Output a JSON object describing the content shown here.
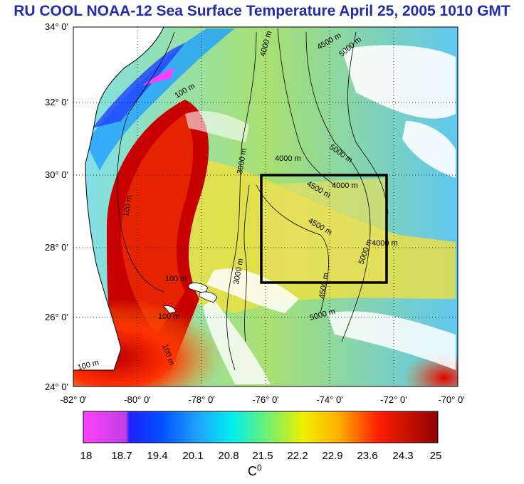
{
  "title": "RU COOL  NOAA-12 Sea Surface Temperature April 25, 2005 1010 GMT",
  "map": {
    "lat_ticks": [
      "34° 0'",
      "32° 0'",
      "30° 0'",
      "28° 0'",
      "26° 0'",
      "24° 0'"
    ],
    "lon_ticks": [
      "-82° 0'",
      "-80° 0'",
      "-78° 0'",
      "-76° 0'",
      "-74° 0'",
      "-72° 0'",
      "-70° 0'"
    ],
    "contour_labels": [
      "100 m",
      "100 m",
      "100 m",
      "100 m",
      "100 m",
      "100 m",
      "3000 m",
      "3000 m",
      "4000 m",
      "4000 m",
      "4000 m",
      "4000 m",
      "4500 m",
      "4500 m",
      "4500 m",
      "4500 m",
      "5000 m",
      "5000 m",
      "5000 m",
      "5000 m"
    ],
    "study_box": {
      "lon": [
        -76,
        -72
      ],
      "lat": [
        27,
        30
      ]
    }
  },
  "colorbar": {
    "ticks": [
      "18",
      "18.7",
      "19.4",
      "20.1",
      "20.8",
      "21.5",
      "22.2",
      "22.9",
      "23.6",
      "24.3",
      "25"
    ],
    "unit": "C",
    "unit_sup": "0"
  },
  "colors": {
    "title": "#1f2ea8",
    "land": "#ffffff",
    "cold": "#0000ff",
    "warm": "#8b0000"
  }
}
